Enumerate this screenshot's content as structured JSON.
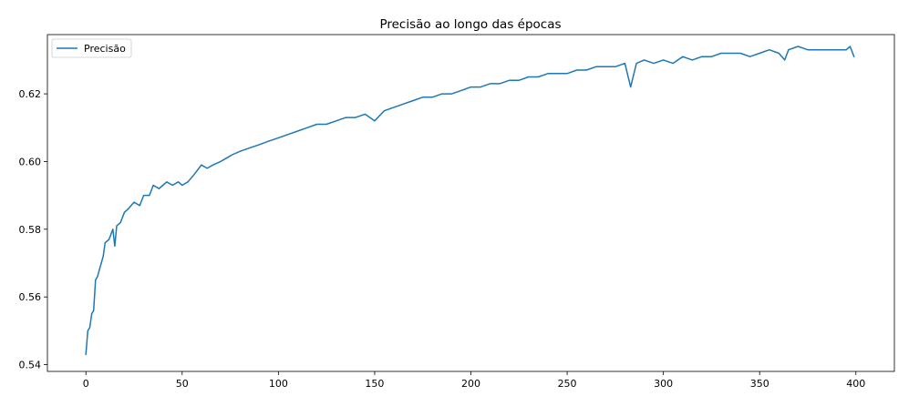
{
  "chart_data": {
    "type": "line",
    "title": "Precisão ao longo das épocas",
    "xlabel": "",
    "ylabel": "",
    "xlim": [
      -20,
      420
    ],
    "ylim": [
      0.538,
      0.6375
    ],
    "x_ticks": [
      0,
      50,
      100,
      150,
      200,
      250,
      300,
      350,
      400
    ],
    "y_ticks": [
      0.54,
      0.56,
      0.58,
      0.6,
      0.62
    ],
    "y_tick_labels": [
      "0.54",
      "0.56",
      "0.58",
      "0.60",
      "0.62"
    ],
    "grid": false,
    "legend": {
      "position": "upper-left",
      "entries": [
        "Precisão"
      ]
    },
    "series": [
      {
        "name": "Precisão",
        "color": "#1f77b4",
        "x": [
          0,
          1,
          2,
          3,
          4,
          5,
          6,
          7,
          8,
          9,
          10,
          12,
          14,
          15,
          16,
          18,
          20,
          22,
          25,
          28,
          30,
          33,
          35,
          38,
          40,
          42,
          45,
          48,
          50,
          53,
          56,
          60,
          63,
          66,
          70,
          73,
          76,
          80,
          85,
          90,
          95,
          100,
          105,
          110,
          115,
          120,
          125,
          130,
          135,
          140,
          145,
          150,
          155,
          160,
          165,
          170,
          175,
          180,
          185,
          190,
          195,
          200,
          205,
          210,
          215,
          220,
          225,
          230,
          235,
          240,
          245,
          250,
          255,
          260,
          265,
          270,
          275,
          280,
          283,
          286,
          290,
          295,
          300,
          305,
          310,
          315,
          320,
          325,
          330,
          335,
          340,
          345,
          350,
          355,
          360,
          363,
          365,
          370,
          375,
          380,
          385,
          390,
          395,
          397,
          399
        ],
        "values": [
          0.543,
          0.55,
          0.551,
          0.555,
          0.556,
          0.565,
          0.566,
          0.568,
          0.57,
          0.572,
          0.576,
          0.577,
          0.58,
          0.575,
          0.581,
          0.582,
          0.585,
          0.586,
          0.588,
          0.587,
          0.59,
          0.59,
          0.593,
          0.592,
          0.593,
          0.594,
          0.593,
          0.594,
          0.593,
          0.594,
          0.596,
          0.599,
          0.598,
          0.599,
          0.6,
          0.601,
          0.602,
          0.603,
          0.604,
          0.605,
          0.606,
          0.607,
          0.608,
          0.609,
          0.61,
          0.611,
          0.611,
          0.612,
          0.613,
          0.613,
          0.614,
          0.612,
          0.615,
          0.616,
          0.617,
          0.618,
          0.619,
          0.619,
          0.62,
          0.62,
          0.621,
          0.622,
          0.622,
          0.623,
          0.623,
          0.624,
          0.624,
          0.625,
          0.625,
          0.626,
          0.626,
          0.626,
          0.627,
          0.627,
          0.628,
          0.628,
          0.628,
          0.629,
          0.622,
          0.629,
          0.63,
          0.629,
          0.63,
          0.629,
          0.631,
          0.63,
          0.631,
          0.631,
          0.632,
          0.632,
          0.632,
          0.631,
          0.632,
          0.633,
          0.632,
          0.63,
          0.633,
          0.634,
          0.633,
          0.633,
          0.633,
          0.633,
          0.633,
          0.634,
          0.631
        ]
      }
    ]
  }
}
